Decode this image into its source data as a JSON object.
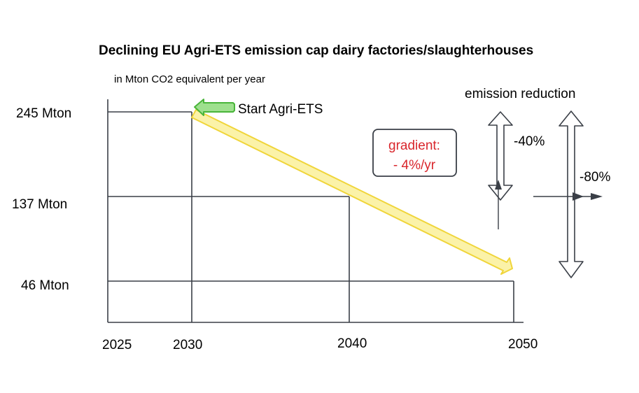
{
  "title": "Declining EU Agri-ETS emission cap dairy factories/slaughterhouses",
  "unit_label": "in Mton CO2 equivalent per year",
  "y_levels": [
    {
      "label": "245 Mton",
      "value": 245
    },
    {
      "label": "137 Mton",
      "value": 137
    },
    {
      "label": "46 Mton",
      "value": 46
    }
  ],
  "x_years": [
    {
      "label": "2025",
      "value": 2025
    },
    {
      "label": "2030",
      "value": 2030
    },
    {
      "label": "2040",
      "value": 2040
    },
    {
      "label": "2050",
      "value": 2050
    }
  ],
  "start_label": "Start Agri-ETS",
  "gradient_box": {
    "line1": "gradient:",
    "line2": "- 4%/yr",
    "color": "#d9262c"
  },
  "emission_reduction": {
    "title": "emission reduction",
    "pct_40": "-40%",
    "pct_80": "-80%"
  },
  "colors": {
    "cap_arrow_fill": "#fbf2a8",
    "cap_arrow_stroke": "#f0d53a",
    "start_arrow_fill": "#9ee08e",
    "start_arrow_stroke": "#49b53a",
    "line": "#3a3f47"
  }
}
